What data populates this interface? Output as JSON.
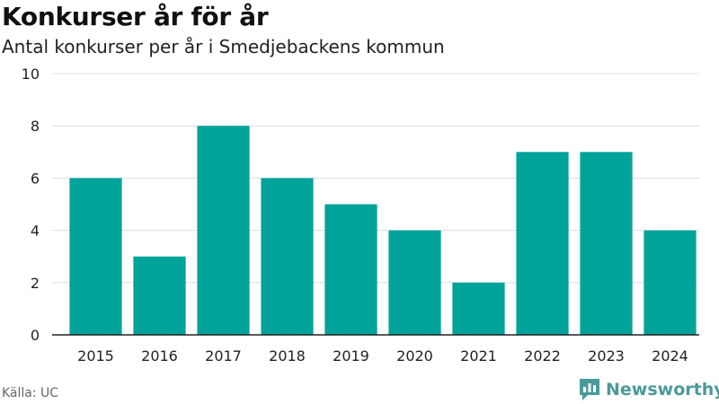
{
  "header": {
    "title": "Konkurser år för år",
    "subtitle": "Antal konkurser per år i Smedjebackens kommun"
  },
  "footer": {
    "source": "Källa: UC",
    "logo_text": "Newsworthy"
  },
  "colors": {
    "bar": "#00a39a",
    "grid": "#dddddd",
    "axis": "#222222",
    "logo": "#4a9a9a"
  },
  "chart_data": {
    "type": "bar",
    "title": "Konkurser år för år",
    "subtitle": "Antal konkurser per år i Smedjebackens kommun",
    "xlabel": "",
    "ylabel": "",
    "categories": [
      "2015",
      "2016",
      "2017",
      "2018",
      "2019",
      "2020",
      "2021",
      "2022",
      "2023",
      "2024"
    ],
    "values": [
      6,
      3,
      8,
      6,
      5,
      4,
      2,
      7,
      7,
      4
    ],
    "ylim": [
      0,
      10
    ],
    "yticks": [
      0,
      2,
      4,
      6,
      8,
      10
    ],
    "grid": true,
    "legend": "none"
  }
}
